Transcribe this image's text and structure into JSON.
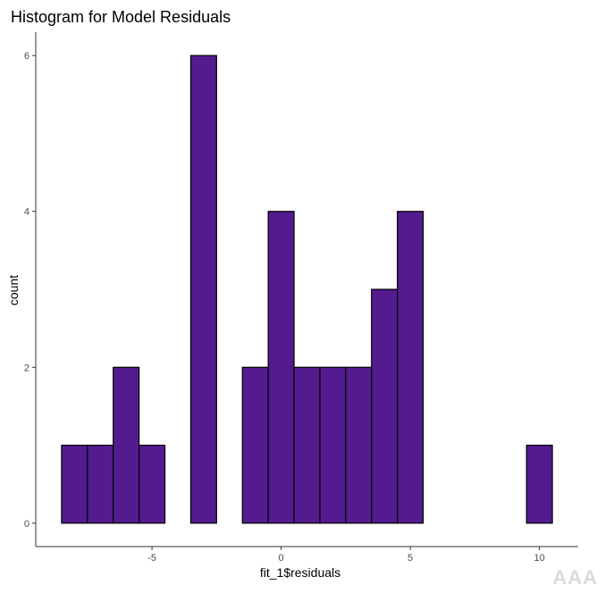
{
  "chart_data": {
    "type": "bar",
    "title": "Histogram for Model Residuals",
    "xlabel": "fit_1$residuals",
    "ylabel": "count",
    "bin_width": 1,
    "bins": [
      {
        "x": -8,
        "count": 1
      },
      {
        "x": -7,
        "count": 1
      },
      {
        "x": -6,
        "count": 2
      },
      {
        "x": -5,
        "count": 1
      },
      {
        "x": -4,
        "count": 0
      },
      {
        "x": -3,
        "count": 6
      },
      {
        "x": -2,
        "count": 0
      },
      {
        "x": -1,
        "count": 2
      },
      {
        "x": 0,
        "count": 4
      },
      {
        "x": 1,
        "count": 2
      },
      {
        "x": 2,
        "count": 2
      },
      {
        "x": 3,
        "count": 2
      },
      {
        "x": 4,
        "count": 3
      },
      {
        "x": 5,
        "count": 4
      },
      {
        "x": 6,
        "count": 0
      },
      {
        "x": 7,
        "count": 0
      },
      {
        "x": 8,
        "count": 0
      },
      {
        "x": 9,
        "count": 0
      },
      {
        "x": 10,
        "count": 1
      }
    ],
    "x_ticks": [
      -5,
      0,
      5,
      10
    ],
    "x_tick_labels": [
      "-5",
      "0",
      "5",
      "10"
    ],
    "y_ticks": [
      0,
      2,
      4,
      6
    ],
    "y_tick_labels": [
      "0",
      "2",
      "4",
      "6"
    ],
    "xlim": [
      -9.5,
      11.5
    ],
    "ylim": [
      -0.3,
      6.3
    ],
    "grid": false,
    "fill_color": "#541b8f",
    "edge_color": "#000000"
  },
  "watermark": "AAA"
}
